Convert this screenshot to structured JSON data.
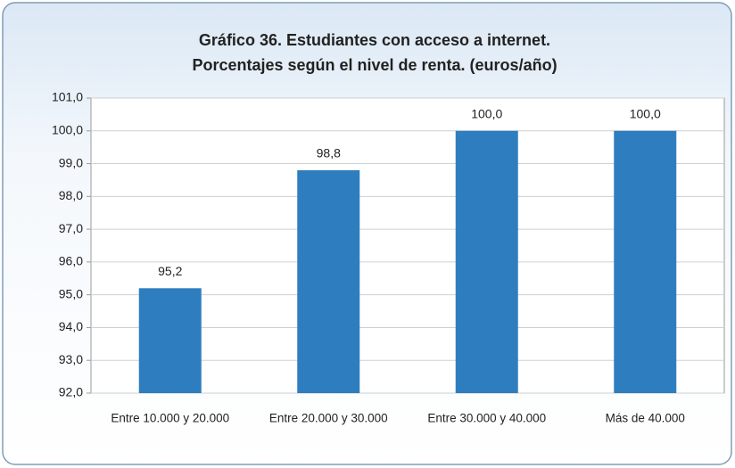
{
  "chart_data": {
    "type": "bar",
    "title": [
      "Gráfico 36. Estudiantes con acceso a internet.",
      "Porcentajes según el nivel de renta. (euros/año)"
    ],
    "categories": [
      "Entre 10.000 y 20.000",
      "Entre 20.000 y 30.000",
      "Entre 30.000 y 40.000",
      "Más de 40.000"
    ],
    "values": [
      95.2,
      98.8,
      100.0,
      100.0
    ],
    "value_labels": [
      "95,2",
      "98,8",
      "100,0",
      "100,0"
    ],
    "color": "#2e7ebf",
    "ylim": [
      92,
      101
    ],
    "yticks": [
      {
        "value": 92,
        "label": "92,0"
      },
      {
        "value": 93,
        "label": "93,0"
      },
      {
        "value": 94,
        "label": "94,0"
      },
      {
        "value": 95,
        "label": "95,0"
      },
      {
        "value": 96,
        "label": "96,0"
      },
      {
        "value": 97,
        "label": "97,0"
      },
      {
        "value": 98,
        "label": "98,0"
      },
      {
        "value": 99,
        "label": "99,0"
      },
      {
        "value": 100,
        "label": "100,0"
      },
      {
        "value": 101,
        "label": "101,0"
      }
    ],
    "grid": true
  }
}
